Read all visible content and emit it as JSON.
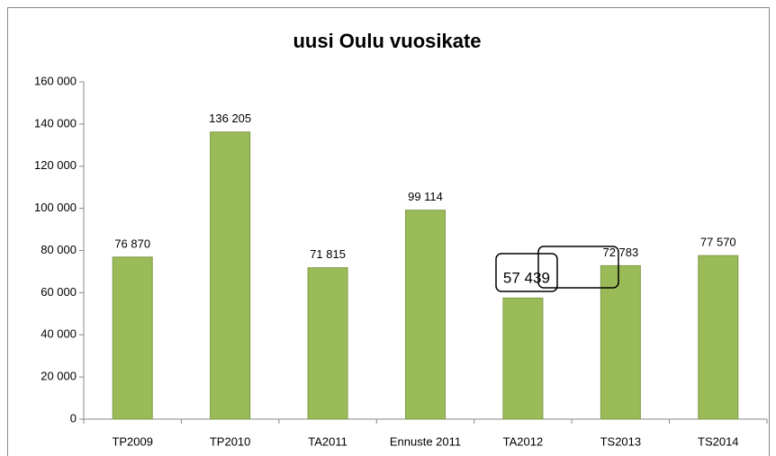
{
  "chart_data": {
    "type": "bar",
    "title": "uusi Oulu vuosikate",
    "categories": [
      "TP2009",
      "TP2010",
      "TA2011",
      "Ennuste 2011",
      "TA2012",
      "TS2013",
      "TS2014"
    ],
    "values": [
      76870,
      136205,
      71815,
      99114,
      57439,
      72783,
      77570
    ],
    "value_labels": [
      "76 870",
      "136 205",
      "71 815",
      "99 114",
      "57 439",
      "72 783",
      "77 570"
    ],
    "color": "#9bbb59",
    "ylim": [
      0,
      160000
    ],
    "yticks": [
      0,
      {
        "value": 20000,
        "label": "20 000"
      },
      {
        "value": 40000,
        "label": "40 000"
      },
      {
        "value": 60000,
        "label": "60 000"
      },
      {
        "value": 80000,
        "label": "80 000"
      },
      {
        "value": 100000,
        "label": "100 000"
      },
      {
        "value": 120000,
        "label": "120 000"
      },
      {
        "value": 140000,
        "label": "140 000"
      },
      {
        "value": 160000,
        "label": "160 000"
      }
    ],
    "grid": false
  }
}
